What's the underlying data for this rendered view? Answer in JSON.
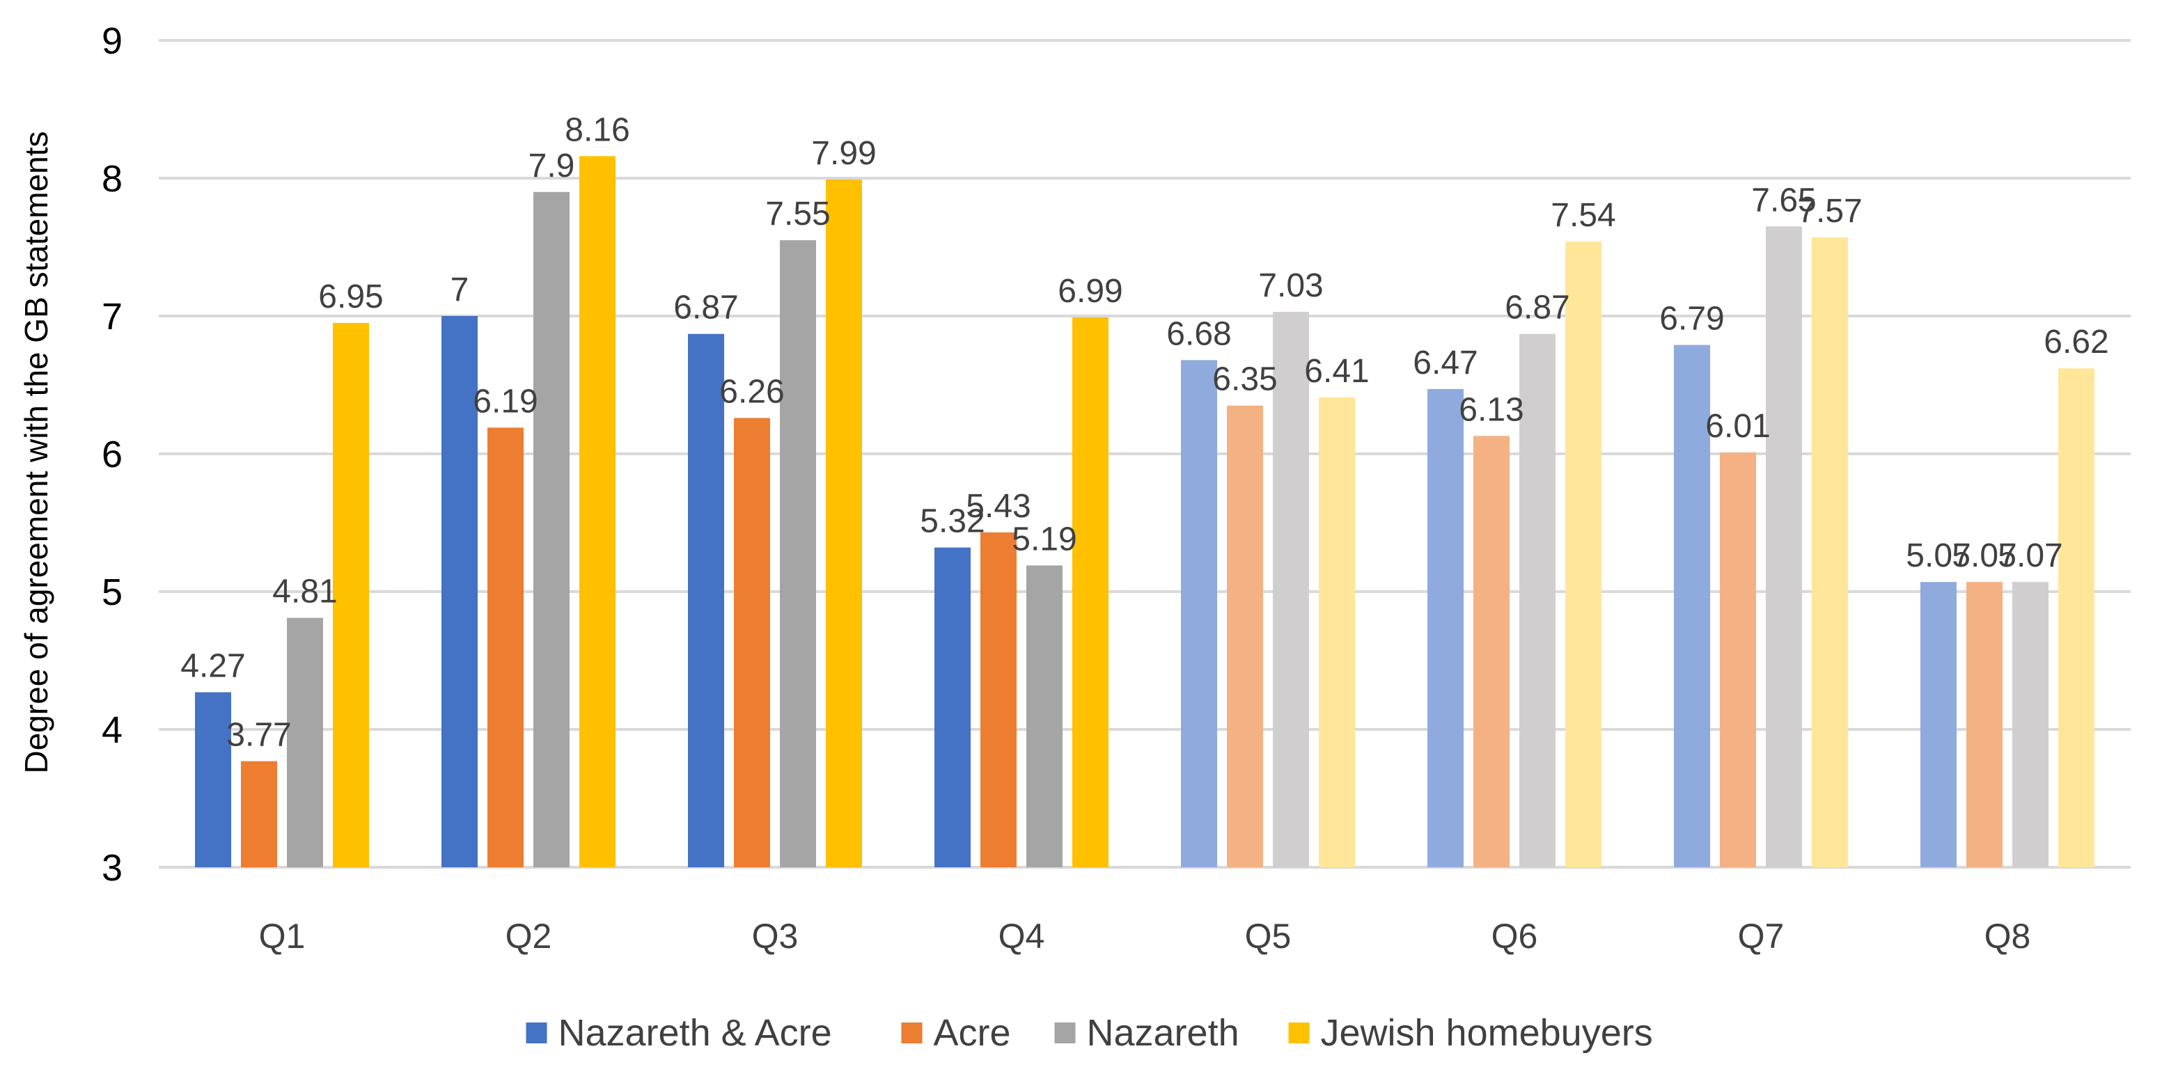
{
  "chart_data": {
    "type": "bar",
    "title": "",
    "xlabel": "",
    "ylabel": "Degree of agreement with the GB statements",
    "ylim": [
      3,
      9
    ],
    "yticks": [
      3,
      4,
      5,
      6,
      7,
      8,
      9
    ],
    "grid": true,
    "legend_position": "bottom",
    "categories": [
      "Q1",
      "Q2",
      "Q3",
      "Q4",
      "Q5",
      "Q6",
      "Q7",
      "Q8"
    ],
    "series": [
      {
        "name": "Nazareth & Acre",
        "color": "#4472c4",
        "light_color": "#8faadc",
        "values": [
          4.27,
          7,
          6.87,
          5.32,
          6.68,
          6.47,
          6.79,
          5.07
        ]
      },
      {
        "name": "Acre",
        "color": "#ed7d31",
        "light_color": "#f4b183",
        "values": [
          3.77,
          6.19,
          6.26,
          5.43,
          6.35,
          6.13,
          6.01,
          5.07
        ]
      },
      {
        "name": "Nazareth",
        "color": "#a5a5a5",
        "light_color": "#d0cece",
        "values": [
          4.81,
          7.9,
          7.55,
          5.19,
          7.03,
          6.87,
          7.65,
          5.07
        ]
      },
      {
        "name": "Jewish homebuyers",
        "color": "#ffc000",
        "light_color": "#ffe699",
        "values": [
          6.95,
          8.16,
          7.99,
          6.99,
          6.41,
          7.54,
          7.57,
          6.62
        ]
      }
    ],
    "light_categories": [
      "Q5",
      "Q6",
      "Q7",
      "Q8"
    ]
  }
}
